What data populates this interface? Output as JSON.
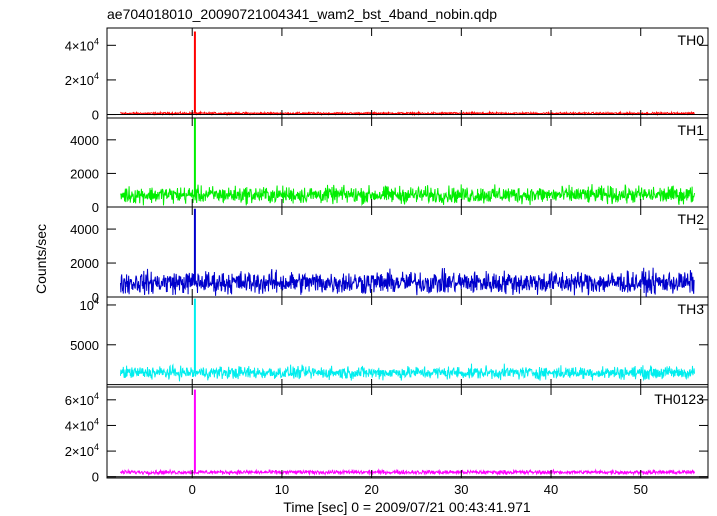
{
  "chart_data": {
    "type": "line",
    "title": "ae704018010_20090721004341_wam2_bst_4band_nobin.qdp",
    "xlabel": "Time [sec] 0 = 2009/07/21 00:43:41.971",
    "ylabel": "Counts/sec",
    "xlim": [
      -9.5,
      57.5
    ],
    "x_ticks": [
      0,
      10,
      20,
      30,
      40,
      50
    ],
    "data_x_range": [
      -8,
      56
    ],
    "burst_time": 0.3,
    "panels": [
      {
        "name": "TH0",
        "color": "#ff0000",
        "ylim": [
          -2000,
          50000
        ],
        "ticks": [
          {
            "v": 0,
            "base": "0",
            "exp": ""
          },
          {
            "v": 20000,
            "base": "2×10",
            "exp": "4"
          },
          {
            "v": 40000,
            "base": "4×10",
            "exp": "4"
          }
        ],
        "baseline": 700,
        "noise": 400,
        "peak": 48000
      },
      {
        "name": "TH1",
        "color": "#00ee00",
        "ylim": [
          0,
          5300
        ],
        "ticks": [
          {
            "v": 0,
            "base": "0",
            "exp": ""
          },
          {
            "v": 2000,
            "base": "2000",
            "exp": ""
          },
          {
            "v": 4000,
            "base": "4000",
            "exp": ""
          }
        ],
        "baseline": 720,
        "noise": 380,
        "peak": 5300
      },
      {
        "name": "TH2",
        "color": "#0000cc",
        "ylim": [
          0,
          5300
        ],
        "ticks": [
          {
            "v": 0,
            "base": "0",
            "exp": ""
          },
          {
            "v": 2000,
            "base": "2000",
            "exp": ""
          },
          {
            "v": 4000,
            "base": "4000",
            "exp": ""
          }
        ],
        "baseline": 850,
        "noise": 500,
        "peak": 5200
      },
      {
        "name": "TH3",
        "color": "#00eeee",
        "ylim": [
          -300,
          11000
        ],
        "ticks": [
          {
            "v": 5000,
            "base": "5000",
            "exp": ""
          },
          {
            "v": 10000,
            "base": "10",
            "exp": "4"
          }
        ],
        "baseline": 1500,
        "noise": 600,
        "peak": 10800
      },
      {
        "name": "TH0123",
        "color": "#ff00ff",
        "ylim": [
          -1000,
          70000
        ],
        "ticks": [
          {
            "v": 0,
            "base": "0",
            "exp": ""
          },
          {
            "v": 20000,
            "base": "2×10",
            "exp": "4"
          },
          {
            "v": 40000,
            "base": "4×10",
            "exp": "4"
          },
          {
            "v": 60000,
            "base": "6×10",
            "exp": "4"
          }
        ],
        "baseline": 3500,
        "noise": 1200,
        "peak": 68000
      }
    ]
  }
}
